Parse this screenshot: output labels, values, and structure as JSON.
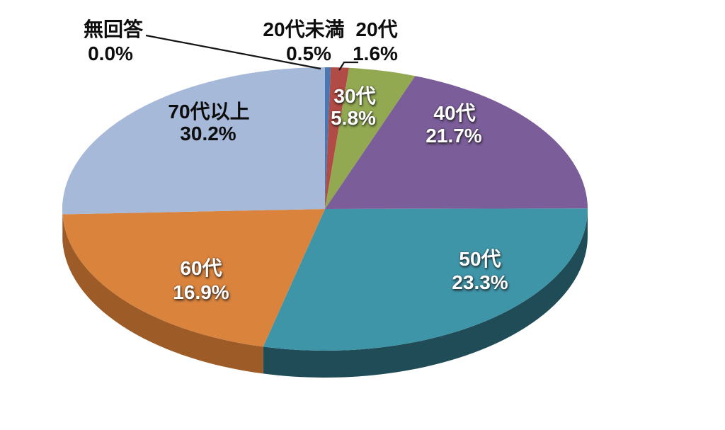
{
  "chart_data": {
    "type": "pie",
    "three_d": true,
    "title": "",
    "legend_position": "none",
    "background_color": "#ffffff",
    "start_angle_deg": 0,
    "direction": "clockwise",
    "unit": "%",
    "slices": [
      {
        "label": "20代未満",
        "value": 0.5,
        "percent_label": "0.5%",
        "color": "#4a76b2",
        "side_color": "#2e5382",
        "label_placement": "outside",
        "label_color": "#0d0d0d"
      },
      {
        "label": "20代",
        "value": 1.6,
        "percent_label": "1.6%",
        "color": "#b04b45",
        "side_color": "#7d332f",
        "label_placement": "outside",
        "label_color": "#0d0d0d"
      },
      {
        "label": "30代",
        "value": 5.8,
        "percent_label": "5.8%",
        "color": "#92a951",
        "side_color": "#68803a",
        "label_placement": "inside",
        "label_color": "#ffffff"
      },
      {
        "label": "40代",
        "value": 21.7,
        "percent_label": "21.7%",
        "color": "#7b5d99",
        "side_color": "#5a4472",
        "label_placement": "inside",
        "label_color": "#ffffff"
      },
      {
        "label": "50代",
        "value": 23.3,
        "percent_label": "23.3%",
        "color": "#3f95a8",
        "side_color": "#1f4c56",
        "label_placement": "inside",
        "label_color": "#ffffff"
      },
      {
        "label": "60代",
        "value": 16.9,
        "percent_label": "16.9%",
        "color": "#d9833d",
        "side_color": "#9d5c27",
        "label_placement": "inside",
        "label_color": "#ffffff"
      },
      {
        "label": "70代以上",
        "value": 30.2,
        "percent_label": "30.2%",
        "color": "#a7b9d9",
        "side_color": "#8397bd",
        "label_placement": "inside",
        "label_color": "#0d0d0d"
      },
      {
        "label": "無回答",
        "value": 0.0,
        "percent_label": "0.0%",
        "color": "#d0cece",
        "side_color": "#9a9a9a",
        "label_placement": "outside",
        "label_color": "#0d0d0d"
      }
    ],
    "leader_lines": [
      {
        "for_label": "無回答",
        "points": [
          [
            206,
            50
          ],
          [
            453,
            97
          ]
        ]
      },
      {
        "for_label": "20代",
        "points": [
          [
            506,
            88
          ],
          [
            486,
            88
          ],
          [
            479,
            99
          ]
        ]
      }
    ]
  }
}
